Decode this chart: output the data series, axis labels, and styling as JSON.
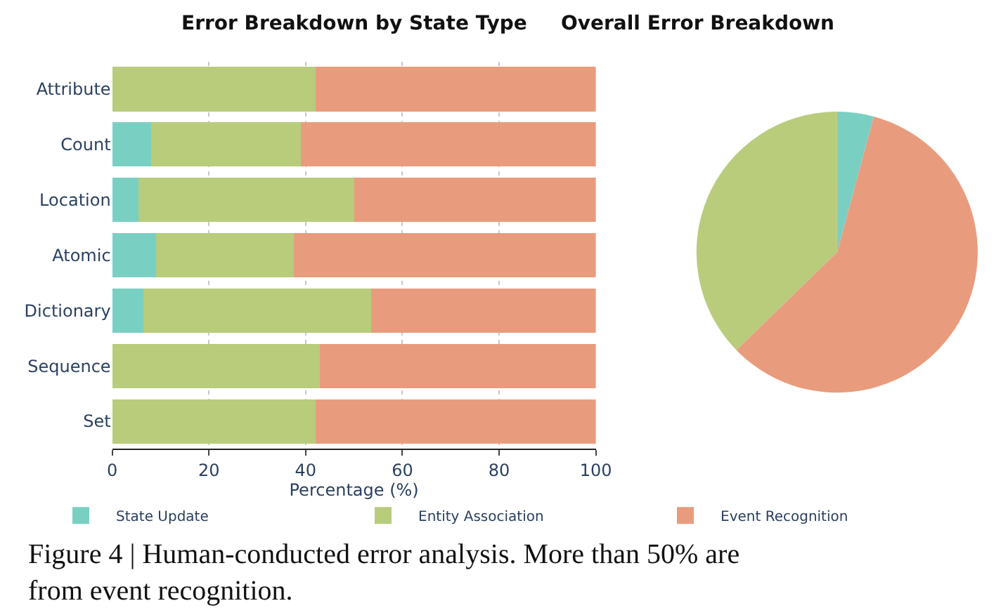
{
  "chart_data": [
    {
      "type": "bar",
      "orientation": "horizontal",
      "stacked": true,
      "title": "Error Breakdown by State Type",
      "xlabel": "Percentage (%)",
      "categories": [
        "Attribute",
        "Count",
        "Location",
        "Atomic",
        "Dictionary",
        "Sequence",
        "Set"
      ],
      "series": [
        {
          "name": "State Update",
          "color": "#7acfc3",
          "values": [
            0,
            8,
            5.5,
            9,
            6.5,
            0,
            0
          ]
        },
        {
          "name": "Entity Association",
          "color": "#b8cc7c",
          "values": [
            42,
            31,
            44.5,
            28.5,
            47,
            43,
            42
          ]
        },
        {
          "name": "Event Recognition",
          "color": "#e89c7d",
          "values": [
            58,
            61,
            50,
            62.5,
            46.5,
            57,
            58
          ]
        }
      ],
      "xlim": [
        0,
        100
      ],
      "xticks": [
        0,
        20,
        40,
        60,
        80,
        100
      ],
      "grid": "x",
      "legend": "bottom",
      "annotations": [
        "Figure 4 | Human-conducted error analysis. More than 50% are from event recognition."
      ]
    },
    {
      "type": "pie",
      "title": "Overall Error Breakdown",
      "categories": [
        null,
        null,
        null
      ],
      "values": [
        4.2,
        37.3,
        58.5
      ],
      "colors": [
        "#7acfc3",
        "#b8cc7c",
        "#e89c7d"
      ]
    }
  ]
}
